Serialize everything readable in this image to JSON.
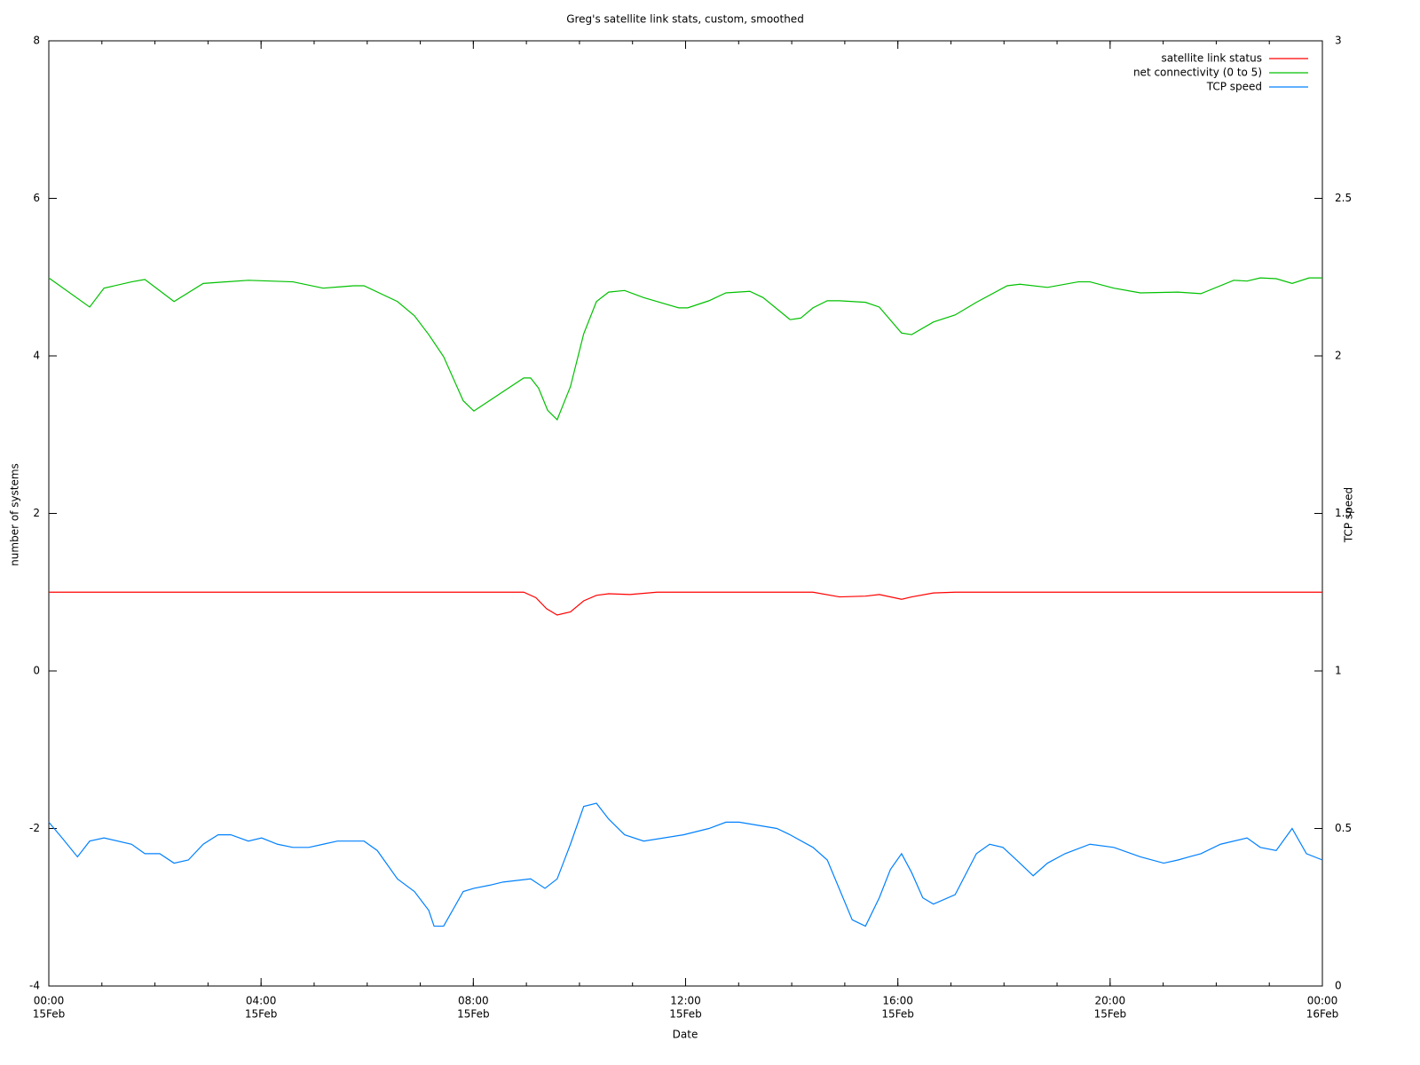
{
  "chart_data": {
    "type": "line",
    "title": "Greg's satellite link stats, custom, smoothed",
    "xlabel": "Date",
    "ylabel": "number of systems",
    "y2label": "TCP speed",
    "xlim": [
      0,
      24
    ],
    "xticks": [
      {
        "value": 0,
        "label": "00:00",
        "sublabel": "15Feb"
      },
      {
        "value": 4,
        "label": "04:00",
        "sublabel": "15Feb"
      },
      {
        "value": 8,
        "label": "08:00",
        "sublabel": "15Feb"
      },
      {
        "value": 12,
        "label": "12:00",
        "sublabel": "15Feb"
      },
      {
        "value": 16,
        "label": "16:00",
        "sublabel": "15Feb"
      },
      {
        "value": 20,
        "label": "20:00",
        "sublabel": "15Feb"
      },
      {
        "value": 24,
        "label": "00:00",
        "sublabel": "16Feb"
      }
    ],
    "ylim": [
      -4,
      8
    ],
    "yticks": [
      -4,
      -2,
      0,
      2,
      4,
      6,
      8
    ],
    "y2lim": [
      0,
      3
    ],
    "y2ticks": [
      0,
      0.5,
      1,
      1.5,
      2,
      2.5,
      3
    ],
    "legend": "top-right",
    "grid": false,
    "series": [
      {
        "name": "satellite link status",
        "color": "#ff0000",
        "x": [
          0,
          8.95,
          9.18,
          9.38,
          9.58,
          9.83,
          10.08,
          10.32,
          10.55,
          10.95,
          11.46,
          14.4,
          14.9,
          15.39,
          15.65,
          16.07,
          16.26,
          16.67,
          17.08,
          24
        ],
        "values": [
          1,
          1,
          0.93,
          0.79,
          0.71,
          0.75,
          0.89,
          0.96,
          0.98,
          0.97,
          1,
          1,
          0.94,
          0.95,
          0.97,
          0.91,
          0.94,
          0.99,
          1,
          1
        ]
      },
      {
        "name": "net connectivity (0 to 5)",
        "color": "#00c000",
        "x": [
          0,
          0.77,
          1.04,
          1.56,
          1.81,
          2.36,
          2.91,
          3.76,
          4.6,
          5.17,
          5.74,
          5.94,
          6.57,
          6.89,
          7.16,
          7.44,
          7.81,
          8.01,
          8.95,
          9.08,
          9.23,
          9.4,
          9.58,
          9.83,
          10.08,
          10.32,
          10.55,
          10.85,
          11.21,
          11.87,
          12.04,
          12.44,
          12.76,
          13.21,
          13.46,
          13.97,
          14.17,
          14.4,
          14.67,
          14.9,
          15.39,
          15.65,
          16.07,
          16.26,
          16.67,
          17.08,
          17.48,
          18.06,
          18.3,
          18.82,
          19.4,
          19.62,
          20.07,
          20.57,
          21.28,
          21.71,
          22.33,
          22.58,
          22.83,
          23.13,
          23.43,
          23.75,
          24
        ],
        "values": [
          4.99,
          4.62,
          4.86,
          4.94,
          4.97,
          4.69,
          4.92,
          4.96,
          4.94,
          4.86,
          4.89,
          4.89,
          4.69,
          4.51,
          4.27,
          3.99,
          3.43,
          3.3,
          3.72,
          3.72,
          3.59,
          3.31,
          3.19,
          3.61,
          4.28,
          4.69,
          4.81,
          4.83,
          4.74,
          4.61,
          4.61,
          4.7,
          4.8,
          4.82,
          4.74,
          4.46,
          4.48,
          4.61,
          4.7,
          4.7,
          4.68,
          4.62,
          4.29,
          4.27,
          4.43,
          4.52,
          4.68,
          4.89,
          4.91,
          4.87,
          4.94,
          4.94,
          4.86,
          4.8,
          4.81,
          4.79,
          4.96,
          4.95,
          4.99,
          4.98,
          4.92,
          4.99,
          4.99
        ]
      },
      {
        "name": "TCP speed",
        "color": "#0080ff",
        "axis": "y2",
        "x": [
          0,
          0.25,
          0.54,
          0.77,
          1.04,
          1.56,
          1.81,
          2.09,
          2.36,
          2.63,
          2.91,
          3.19,
          3.43,
          3.76,
          4.01,
          4.31,
          4.6,
          4.9,
          5.17,
          5.44,
          5.69,
          5.94,
          6.19,
          6.57,
          6.89,
          7.16,
          7.26,
          7.44,
          7.81,
          8.01,
          8.31,
          8.56,
          9.08,
          9.35,
          9.58,
          9.83,
          10.08,
          10.32,
          10.55,
          10.85,
          11.21,
          11.96,
          12.44,
          12.76,
          13.01,
          13.72,
          13.97,
          14.4,
          14.67,
          15.14,
          15.39,
          15.65,
          15.86,
          16.07,
          16.26,
          16.47,
          16.67,
          17.08,
          17.48,
          17.73,
          17.98,
          18.3,
          18.55,
          18.82,
          19.15,
          19.62,
          20.07,
          20.57,
          21.01,
          21.28,
          21.49,
          21.71,
          22.08,
          22.58,
          22.83,
          23.13,
          23.43,
          23.7,
          24
        ],
        "values": [
          0.52,
          0.47,
          0.41,
          0.46,
          0.47,
          0.45,
          0.42,
          0.42,
          0.39,
          0.4,
          0.45,
          0.48,
          0.48,
          0.46,
          0.47,
          0.45,
          0.44,
          0.44,
          0.45,
          0.46,
          0.46,
          0.46,
          0.43,
          0.34,
          0.3,
          0.24,
          0.19,
          0.19,
          0.3,
          0.31,
          0.32,
          0.33,
          0.34,
          0.31,
          0.34,
          0.45,
          0.57,
          0.58,
          0.53,
          0.48,
          0.46,
          0.48,
          0.5,
          0.52,
          0.52,
          0.5,
          0.48,
          0.44,
          0.4,
          0.21,
          0.19,
          0.28,
          0.37,
          0.42,
          0.36,
          0.28,
          0.26,
          0.29,
          0.42,
          0.45,
          0.44,
          0.39,
          0.35,
          0.39,
          0.42,
          0.45,
          0.44,
          0.41,
          0.39,
          0.4,
          0.41,
          0.42,
          0.45,
          0.47,
          0.44,
          0.43,
          0.5,
          0.42,
          0.4
        ]
      }
    ]
  }
}
